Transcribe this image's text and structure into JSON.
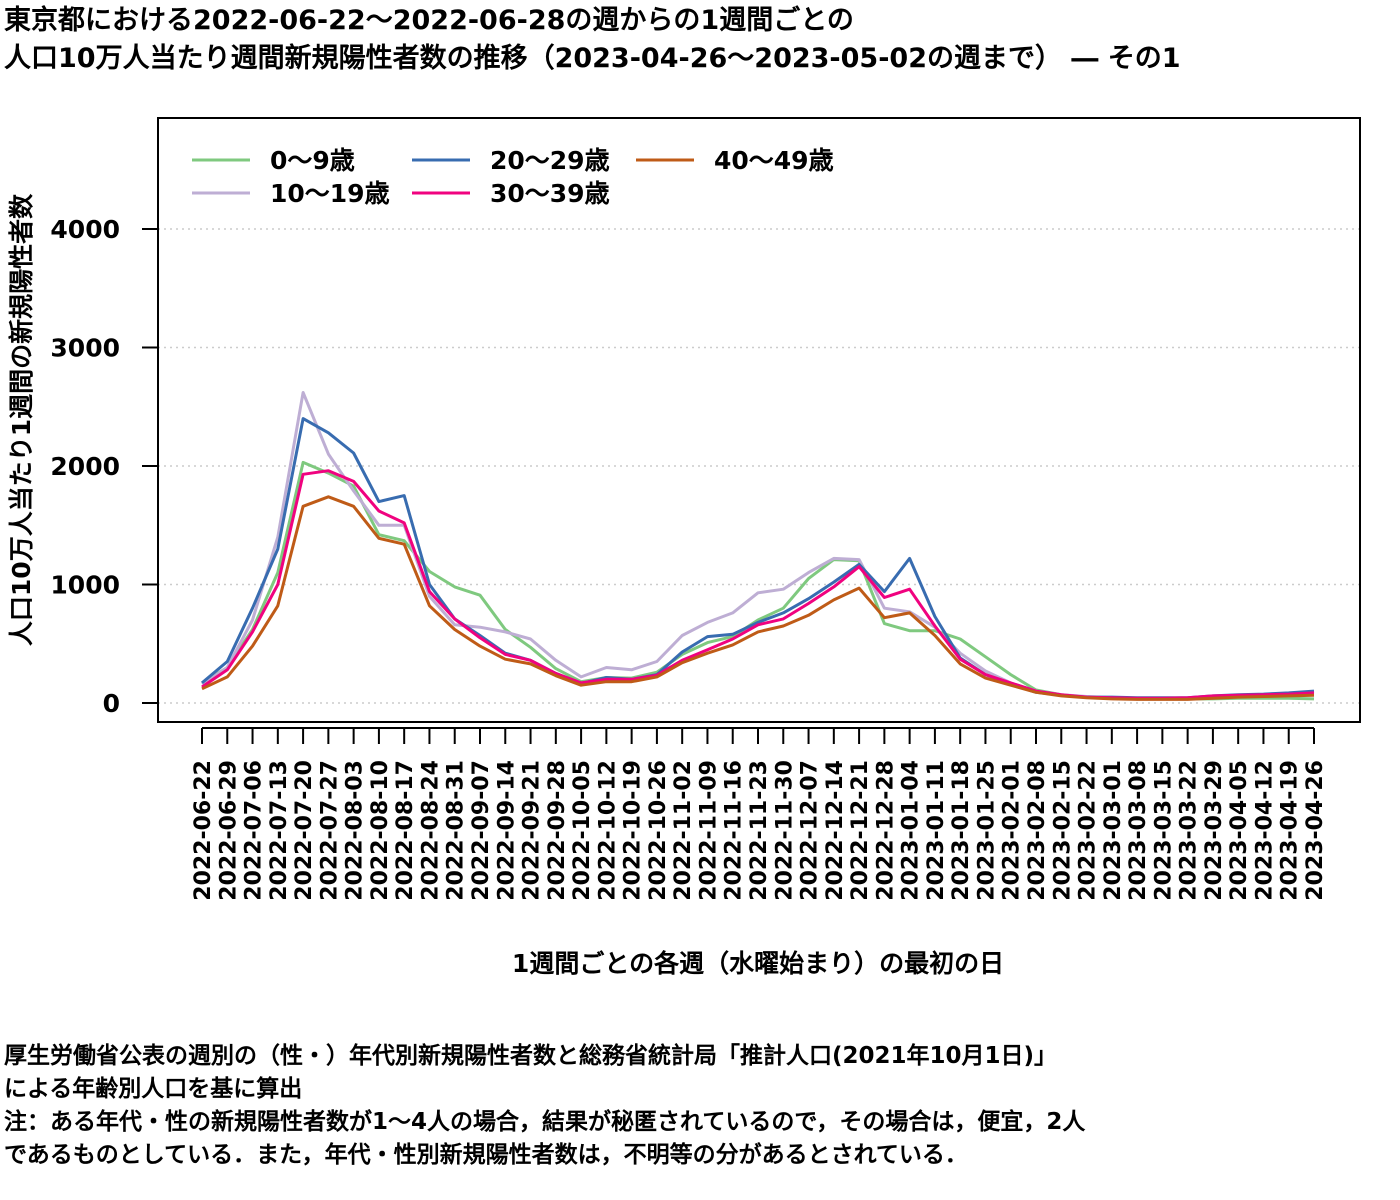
{
  "title": {
    "line1": "東京都における2022-06-22～2022-06-28の週からの1週間ごとの",
    "line2": "人口10万人当たり週間新規陽性者数の推移（2023-04-26～2023-05-02の週まで） ― その1"
  },
  "notes": {
    "line1": "厚生労働省公表の週別の（性・）年代別新規陽性者数と総務省統計局「推計人口(2021年10月1日)」",
    "line2": "による年齢別人口を基に算出",
    "line3": "注：ある年代・性の新規陽性者数が1～4人の場合，結果が秘匿されているので，その場合は，便宜，2人",
    "line4": "であるものとしている．また，年代・性別新規陽性者数は，不明等の分があるとされている．"
  },
  "chart_data": {
    "type": "line",
    "xlabel": "1週間ごとの各週（水曜始まり）の最初の日",
    "ylabel": "人口10万人当たり1週間の新規陽性者数",
    "ylim": [
      0,
      4900
    ],
    "yticks": [
      0,
      1000,
      2000,
      3000,
      4000
    ],
    "grid": "horizontal dotted",
    "legend_position": "top-left",
    "categories": [
      "2022-06-22",
      "2022-06-29",
      "2022-07-06",
      "2022-07-13",
      "2022-07-20",
      "2022-07-27",
      "2022-08-03",
      "2022-08-10",
      "2022-08-17",
      "2022-08-24",
      "2022-08-31",
      "2022-09-07",
      "2022-09-14",
      "2022-09-21",
      "2022-09-28",
      "2022-10-05",
      "2022-10-12",
      "2022-10-19",
      "2022-10-26",
      "2022-11-02",
      "2022-11-09",
      "2022-11-16",
      "2022-11-23",
      "2022-11-30",
      "2022-12-07",
      "2022-12-14",
      "2022-12-21",
      "2022-12-28",
      "2023-01-04",
      "2023-01-11",
      "2023-01-18",
      "2023-01-25",
      "2023-02-01",
      "2023-02-08",
      "2023-02-15",
      "2023-02-22",
      "2023-03-01",
      "2023-03-08",
      "2023-03-15",
      "2023-03-22",
      "2023-03-29",
      "2023-04-05",
      "2023-04-12",
      "2023-04-19",
      "2023-04-26"
    ],
    "series": [
      {
        "name": "0～9歳",
        "color": "#7fc97f",
        "values": [
          170,
          300,
          620,
          1100,
          2030,
          1940,
          1830,
          1420,
          1370,
          1110,
          980,
          910,
          620,
          470,
          290,
          180,
          215,
          210,
          260,
          410,
          510,
          560,
          700,
          800,
          1050,
          1210,
          1200,
          670,
          610,
          610,
          540,
          390,
          240,
          110,
          70,
          50,
          45,
          40,
          35,
          35,
          35,
          40,
          40,
          40,
          35
        ]
      },
      {
        "name": "10～19歳",
        "color": "#beaed4",
        "values": [
          160,
          300,
          700,
          1400,
          2620,
          2100,
          1790,
          1500,
          1500,
          900,
          660,
          640,
          600,
          540,
          360,
          220,
          300,
          280,
          350,
          570,
          680,
          760,
          930,
          960,
          1100,
          1220,
          1210,
          800,
          770,
          640,
          420,
          270,
          170,
          100,
          70,
          55,
          45,
          40,
          35,
          40,
          50,
          60,
          65,
          70,
          75
        ]
      },
      {
        "name": "20～29歳",
        "color": "#386cb0",
        "values": [
          170,
          350,
          800,
          1300,
          2400,
          2280,
          2110,
          1700,
          1750,
          1000,
          710,
          570,
          420,
          360,
          250,
          165,
          215,
          200,
          240,
          430,
          560,
          580,
          680,
          760,
          880,
          1020,
          1170,
          940,
          1220,
          730,
          380,
          240,
          160,
          90,
          65,
          50,
          50,
          45,
          45,
          45,
          60,
          70,
          75,
          85,
          100
        ]
      },
      {
        "name": "30～39歳",
        "color": "#f0027f",
        "values": [
          135,
          280,
          600,
          1000,
          1930,
          1960,
          1870,
          1620,
          1520,
          940,
          710,
          550,
          410,
          360,
          250,
          170,
          200,
          200,
          235,
          360,
          450,
          540,
          660,
          710,
          840,
          980,
          1150,
          890,
          960,
          650,
          370,
          240,
          170,
          100,
          70,
          50,
          45,
          40,
          40,
          45,
          60,
          65,
          70,
          75,
          85
        ]
      },
      {
        "name": "40～49歳",
        "color": "#bf5b17",
        "values": [
          120,
          220,
          480,
          820,
          1660,
          1740,
          1660,
          1390,
          1340,
          820,
          620,
          480,
          370,
          330,
          230,
          150,
          180,
          180,
          220,
          340,
          420,
          490,
          600,
          650,
          740,
          870,
          970,
          720,
          760,
          570,
          330,
          210,
          150,
          90,
          60,
          45,
          35,
          30,
          30,
          30,
          40,
          50,
          55,
          60,
          65
        ]
      }
    ]
  }
}
